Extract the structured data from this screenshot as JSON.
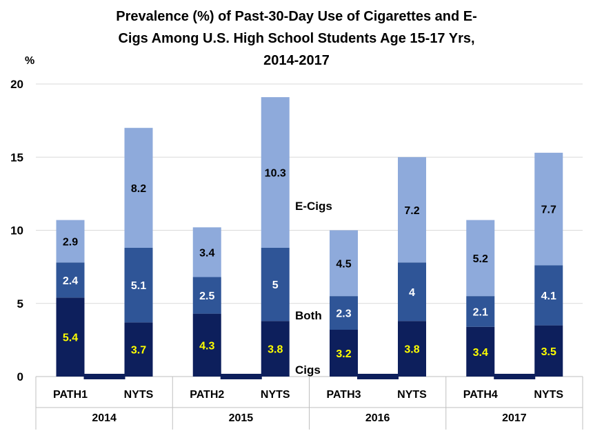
{
  "chart_data": {
    "type": "bar",
    "stacked": true,
    "title_lines": [
      "Prevalence (%) of Past-30-Day Use of Cigarettes and E-",
      "Cigs Among U.S. High School Students Age 15-17 Yrs,",
      "2014-2017"
    ],
    "ylabel": "%",
    "ylim": [
      0,
      20
    ],
    "yticks": [
      0,
      5,
      10,
      15,
      20
    ],
    "grid": true,
    "categories": [
      "PATH1",
      "NYTS",
      "PATH2",
      "NYTS",
      "PATH3",
      "NYTS",
      "PATH4",
      "NYTS"
    ],
    "groups": [
      "2014",
      "2015",
      "2016",
      "2017"
    ],
    "series": [
      {
        "name": "Cigs",
        "color": "#0d1f5c",
        "label_color": "#ffff00",
        "values": [
          5.4,
          3.7,
          4.3,
          3.8,
          3.2,
          3.8,
          3.4,
          3.5
        ]
      },
      {
        "name": "Both",
        "color": "#2f5597",
        "label_color": "#ffffff",
        "values": [
          2.4,
          5.1,
          2.5,
          5,
          2.3,
          4,
          2.1,
          4.1
        ]
      },
      {
        "name": "E-Cigs",
        "color": "#8eaadb",
        "label_color": "#000000",
        "values": [
          2.9,
          8.2,
          3.4,
          10.3,
          4.5,
          7.2,
          5.2,
          7.7
        ]
      }
    ]
  }
}
